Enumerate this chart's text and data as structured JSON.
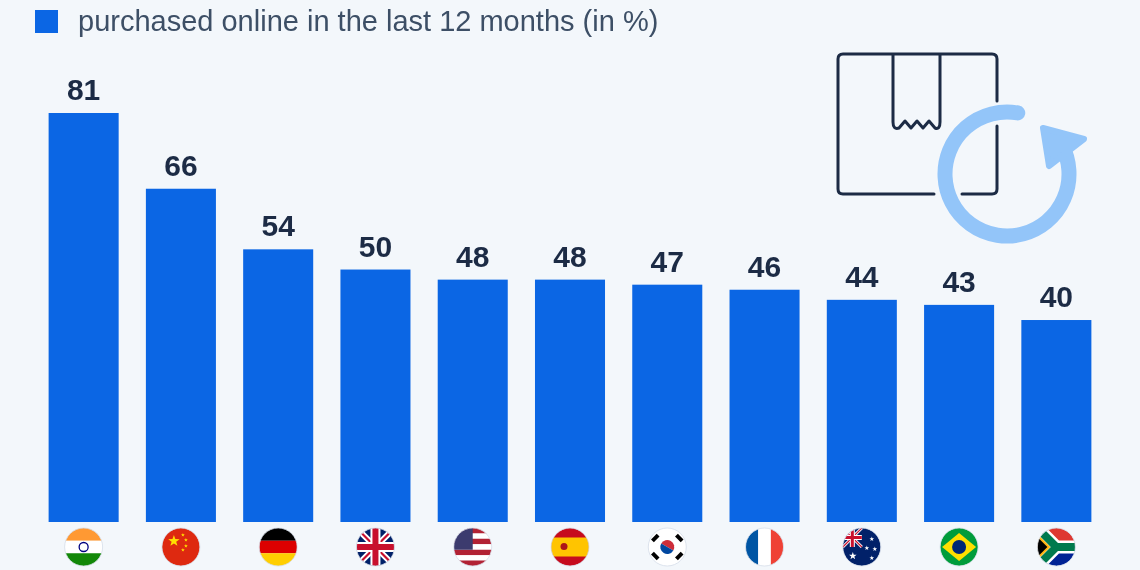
{
  "chart_data": {
    "type": "bar",
    "categories": [
      null,
      null,
      null,
      null,
      null,
      null,
      null,
      null,
      null,
      null,
      null
    ],
    "series": [
      {
        "name": "purchased online in the last 12 months (in %)",
        "color": "#0b66e4",
        "values": [
          81,
          66,
          54,
          50,
          48,
          48,
          47,
          46,
          44,
          43,
          40
        ]
      }
    ],
    "data_labels": true,
    "legend": "top left"
  }
}
